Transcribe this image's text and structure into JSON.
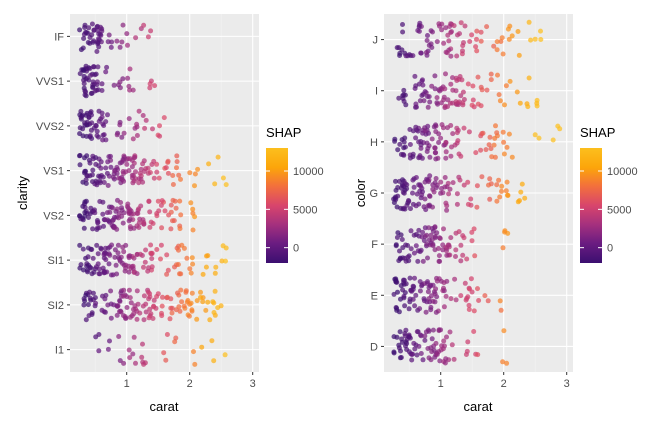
{
  "colors": {
    "panel_bg": "#ebebeb",
    "grid_major": "#ffffff",
    "grid_minor": "#f3f3f3",
    "gradient": [
      "#3b0f70",
      "#6a1c81",
      "#a3307e",
      "#d8456c",
      "#f3703c",
      "#fca50a",
      "#fcbf1e"
    ]
  },
  "chart_data": [
    {
      "type": "scatter",
      "title": "",
      "xlabel": "carat",
      "ylabel": "clarity",
      "xlim": [
        0.1,
        3.1
      ],
      "x_ticks": [
        "1",
        "2",
        "3"
      ],
      "x_tick_values": [
        1,
        2,
        3
      ],
      "categories": [
        "IF",
        "VVS1",
        "VVS2",
        "VS1",
        "VS2",
        "SI1",
        "SI2",
        "I1"
      ],
      "color_legend": {
        "title": "SHAP",
        "range": [
          -2000,
          13000
        ],
        "ticks": [
          "10000",
          "5000",
          "0"
        ],
        "tick_values": [
          10000,
          5000,
          0
        ]
      },
      "series": [
        {
          "category": "IF",
          "dense": [
            0.25,
            0.6
          ],
          "mid": [
            0.6,
            1.1
          ],
          "sparse": [
            1.1,
            1.45
          ],
          "n": [
            35,
            12,
            5
          ]
        },
        {
          "category": "VVS1",
          "dense": [
            0.25,
            0.55
          ],
          "mid": [
            0.55,
            1.05
          ],
          "sparse": [
            1.05,
            1.45
          ],
          "n": [
            40,
            12,
            6
          ]
        },
        {
          "category": "VVS2",
          "dense": [
            0.25,
            0.65
          ],
          "mid": [
            0.65,
            1.3
          ],
          "sparse": [
            1.3,
            1.65
          ],
          "n": [
            45,
            18,
            6
          ]
        },
        {
          "category": "VS1",
          "dense": [
            0.25,
            1.2
          ],
          "mid": [
            1.2,
            1.9
          ],
          "sparse": [
            1.9,
            2.6
          ],
          "n": [
            90,
            30,
            9
          ]
        },
        {
          "category": "VS2",
          "dense": [
            0.25,
            1.25
          ],
          "mid": [
            1.25,
            1.8
          ],
          "sparse": [
            1.8,
            2.1
          ],
          "n": [
            90,
            28,
            9
          ]
        },
        {
          "category": "SI1",
          "dense": [
            0.25,
            1.3
          ],
          "mid": [
            1.3,
            2.05
          ],
          "sparse": [
            2.05,
            2.6
          ],
          "n": [
            90,
            30,
            10
          ]
        },
        {
          "category": "SI2",
          "dense": [
            0.3,
            1.5
          ],
          "mid": [
            1.5,
            2.1
          ],
          "sparse": [
            2.1,
            2.5
          ],
          "n": [
            85,
            32,
            16
          ]
        },
        {
          "category": "I1",
          "dense": [
            0.5,
            1.5
          ],
          "mid": [
            1.5,
            2.3
          ],
          "sparse": [
            2.3,
            3.0
          ],
          "n": [
            18,
            8,
            3
          ]
        }
      ]
    },
    {
      "type": "scatter",
      "title": "",
      "xlabel": "carat",
      "ylabel": "color",
      "xlim": [
        0.1,
        3.1
      ],
      "x_ticks": [
        "1",
        "2",
        "3"
      ],
      "x_tick_values": [
        1,
        2,
        3
      ],
      "categories": [
        "J",
        "I",
        "H",
        "G",
        "F",
        "E",
        "D"
      ],
      "color_legend": {
        "title": "SHAP",
        "range": [
          -2000,
          13000
        ],
        "ticks": [
          "10000",
          "5000",
          "0"
        ],
        "tick_values": [
          10000,
          5000,
          0
        ]
      },
      "series": [
        {
          "category": "J",
          "dense": [
            0.3,
            1.4
          ],
          "mid": [
            1.4,
            2.1
          ],
          "sparse": [
            2.1,
            2.6
          ],
          "n": [
            60,
            18,
            8
          ]
        },
        {
          "category": "I",
          "dense": [
            0.3,
            1.4
          ],
          "mid": [
            1.4,
            2.1
          ],
          "sparse": [
            2.1,
            2.55
          ],
          "n": [
            70,
            18,
            9
          ]
        },
        {
          "category": "H",
          "dense": [
            0.25,
            1.3
          ],
          "mid": [
            1.3,
            2.05
          ],
          "sparse": [
            2.05,
            3.0
          ],
          "n": [
            80,
            22,
            8
          ]
        },
        {
          "category": "G",
          "dense": [
            0.25,
            1.2
          ],
          "mid": [
            1.2,
            2.0
          ],
          "sparse": [
            2.0,
            2.35
          ],
          "n": [
            85,
            22,
            9
          ]
        },
        {
          "category": "F",
          "dense": [
            0.25,
            1.15
          ],
          "mid": [
            1.15,
            1.55
          ],
          "sparse": [
            1.95,
            2.1
          ],
          "n": [
            75,
            15,
            4
          ]
        },
        {
          "category": "E",
          "dense": [
            0.25,
            1.1
          ],
          "mid": [
            1.1,
            1.6
          ],
          "sparse": [
            1.6,
            2.05
          ],
          "n": [
            80,
            16,
            5
          ]
        },
        {
          "category": "D",
          "dense": [
            0.25,
            1.05
          ],
          "mid": [
            1.05,
            1.6
          ],
          "sparse": [
            1.95,
            2.05
          ],
          "n": [
            70,
            14,
            3
          ]
        }
      ]
    }
  ]
}
